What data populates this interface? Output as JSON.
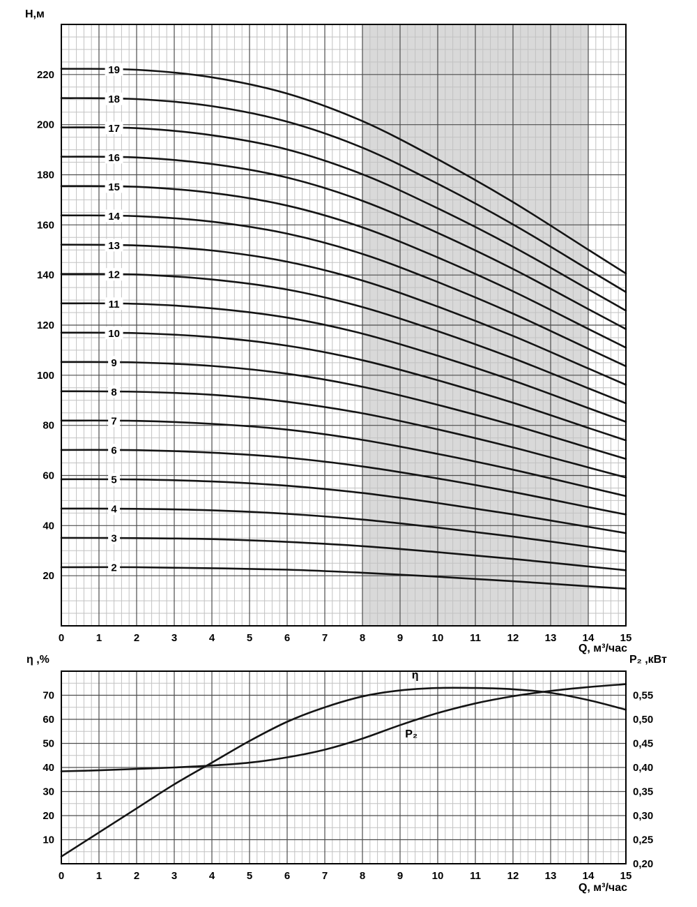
{
  "page": {
    "background": "#ffffff",
    "curve_color": "#141414",
    "text_color": "#000000",
    "grid_minor_color": "#c2c2c2",
    "grid_major_color": "#4d4d4d",
    "shade_color": "#d9d9d9"
  },
  "chart_data": [
    {
      "id": "head-vs-flow",
      "type": "line",
      "ylabel": "Н,м",
      "xlabel": "Q, м³/час",
      "x_range": [
        0,
        15
      ],
      "y_range": [
        0,
        240
      ],
      "x_major_ticks": [
        0,
        1,
        2,
        3,
        4,
        5,
        6,
        7,
        8,
        9,
        10,
        11,
        12,
        13,
        14,
        15
      ],
      "y_major_ticks": [
        20,
        40,
        60,
        80,
        100,
        120,
        140,
        160,
        180,
        200,
        220
      ],
      "x_minor_step": 0.2,
      "y_minor_step": 5,
      "shaded_region": {
        "x_from": 8,
        "x_to": 14
      },
      "series_label_x": 1.4,
      "x": [
        0,
        2,
        4,
        6,
        8,
        10,
        12,
        14,
        15
      ],
      "series": [
        {
          "name": "19",
          "values": [
            222.3,
            221.9,
            218.9,
            212.4,
            201.4,
            186.2,
            169.1,
            150.1,
            140.6
          ]
        },
        {
          "name": "18",
          "values": [
            210.6,
            210.2,
            207.4,
            201.2,
            190.8,
            176.4,
            160.2,
            142.2,
            133.2
          ]
        },
        {
          "name": "17",
          "values": [
            198.9,
            198.6,
            195.8,
            190.1,
            180.2,
            166.6,
            151.3,
            134.3,
            125.8
          ]
        },
        {
          "name": "16",
          "values": [
            187.2,
            186.9,
            184.3,
            178.9,
            169.6,
            156.8,
            142.4,
            126.4,
            118.4
          ]
        },
        {
          "name": "15",
          "values": [
            175.5,
            175.2,
            172.8,
            167.7,
            159.0,
            147.0,
            133.5,
            118.5,
            111.0
          ]
        },
        {
          "name": "14",
          "values": [
            163.8,
            163.5,
            161.3,
            156.5,
            148.4,
            137.2,
            124.6,
            110.6,
            103.6
          ]
        },
        {
          "name": "13",
          "values": [
            152.1,
            151.8,
            149.8,
            145.3,
            137.8,
            127.4,
            115.7,
            102.7,
            96.2
          ]
        },
        {
          "name": "12",
          "values": [
            140.4,
            140.2,
            138.2,
            134.2,
            127.2,
            117.6,
            106.8,
            94.8,
            88.8
          ]
        },
        {
          "name": "11",
          "values": [
            128.7,
            128.5,
            126.7,
            123.0,
            116.6,
            107.8,
            97.9,
            86.9,
            81.4
          ]
        },
        {
          "name": "10",
          "values": [
            117.0,
            116.8,
            115.2,
            111.8,
            106.0,
            98.0,
            89.0,
            79.0,
            74.0
          ]
        },
        {
          "name": "9",
          "values": [
            105.3,
            105.1,
            103.7,
            100.6,
            95.4,
            88.2,
            80.1,
            71.1,
            66.6
          ]
        },
        {
          "name": "8",
          "values": [
            93.6,
            93.4,
            92.2,
            89.4,
            84.8,
            78.4,
            71.2,
            63.2,
            59.2
          ]
        },
        {
          "name": "7",
          "values": [
            81.9,
            81.8,
            80.6,
            78.3,
            74.2,
            68.6,
            62.3,
            55.3,
            51.8
          ]
        },
        {
          "name": "6",
          "values": [
            70.2,
            70.1,
            69.1,
            67.1,
            63.6,
            58.8,
            53.4,
            47.4,
            44.4
          ]
        },
        {
          "name": "5",
          "values": [
            58.5,
            58.4,
            57.6,
            55.9,
            53.0,
            49.0,
            44.5,
            39.5,
            37.0
          ]
        },
        {
          "name": "4",
          "values": [
            46.8,
            46.7,
            46.1,
            44.7,
            42.4,
            39.2,
            35.6,
            31.6,
            29.6
          ]
        },
        {
          "name": "3",
          "values": [
            35.1,
            35.0,
            34.6,
            33.5,
            31.8,
            29.4,
            26.7,
            23.7,
            22.2
          ]
        },
        {
          "name": "2",
          "values": [
            23.4,
            23.4,
            23.0,
            22.4,
            21.2,
            19.6,
            17.8,
            15.8,
            14.8
          ]
        }
      ]
    },
    {
      "id": "efficiency-and-power",
      "type": "line",
      "ylabel_left": "η ,%",
      "ylabel_right": "P₂ ,кВт",
      "xlabel": "Q, м³/час",
      "x_range": [
        0,
        15
      ],
      "y_left_range": [
        0,
        80
      ],
      "y_right_range": [
        0.2,
        0.6
      ],
      "x_major_ticks": [
        0,
        1,
        2,
        3,
        4,
        5,
        6,
        7,
        8,
        9,
        10,
        11,
        12,
        13,
        14,
        15
      ],
      "y_left_ticks": [
        10,
        20,
        30,
        40,
        50,
        60,
        70
      ],
      "y_right_ticks": [
        {
          "value": 0.2,
          "label": "0,20"
        },
        {
          "value": 0.25,
          "label": "0,25"
        },
        {
          "value": 0.3,
          "label": "0,30"
        },
        {
          "value": 0.35,
          "label": "0,35"
        },
        {
          "value": 0.4,
          "label": "0,40"
        },
        {
          "value": 0.45,
          "label": "0,45"
        },
        {
          "value": 0.5,
          "label": "0,50"
        },
        {
          "value": 0.55,
          "label": "0,55"
        }
      ],
      "x_minor_step": 0.2,
      "y_minor_step": 5,
      "x": [
        0,
        1,
        2,
        3,
        4,
        5,
        6,
        7,
        8,
        9,
        10,
        11,
        12,
        13,
        14,
        15
      ],
      "series": [
        {
          "name": "η",
          "axis": "left",
          "values": [
            3,
            13,
            23,
            33,
            42,
            51,
            59,
            65,
            69.5,
            72,
            73,
            73,
            72.5,
            71,
            68,
            64
          ],
          "label_at": {
            "x": 9.4,
            "y": 77
          }
        },
        {
          "name": "P₂",
          "axis": "right",
          "values": [
            0.392,
            0.394,
            0.397,
            0.4,
            0.404,
            0.41,
            0.421,
            0.437,
            0.46,
            0.488,
            0.513,
            0.533,
            0.548,
            0.559,
            0.567,
            0.573
          ],
          "label_at": {
            "x": 9.3,
            "y": 0.462
          }
        }
      ]
    }
  ]
}
